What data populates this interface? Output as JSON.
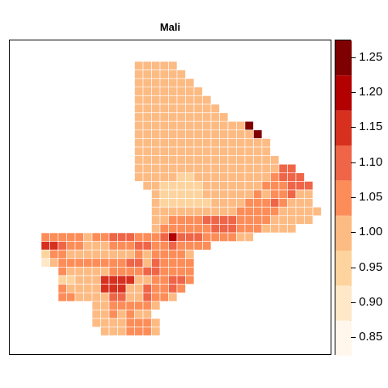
{
  "title": "Mali",
  "legend": {
    "min": 0.825,
    "max": 1.275,
    "ticks": [
      "0.85",
      "0.90",
      "0.95",
      "1.00",
      "1.05",
      "1.10",
      "1.15",
      "1.20",
      "1.25"
    ],
    "bins": [
      0.825,
      0.875,
      0.925,
      0.975,
      1.025,
      1.075,
      1.125,
      1.175,
      1.225,
      1.275
    ],
    "colors": [
      "#FFF7EC",
      "#FEE8C8",
      "#FDD49E",
      "#FDBB84",
      "#FC8D59",
      "#EF6548",
      "#D7301F",
      "#B30000",
      "#7F0000"
    ]
  },
  "grid": {
    "cols": 37,
    "rows": 34,
    "legend_levels": "0=0.85 1=0.90 2=0.95 3=1.00 4=1.05 5=1.10 6=1.15 7=1.20 8=1.25, .=no data",
    "cells": [
      ".............33333..................",
      ".............333333.................",
      ".............3333333................",
      ".............33333333...............",
      ".............333333333..............",
      ".............3333333333.............",
      ".............33333333333............",
      ".............33333333333338.........",
      ".............333333333333338........",
      ".............3333333333333333.......",
      ".............3333333333333333.......",
      ".............33333333333333333......",
      ".............3333333333333333355....",
      ".............33333223333333334555...",
      "..............33222223333333444555..",
      "...............3222223333334344533..",
      "...............3222222333344454333..",
      "...............33333333334444433333.",
      "...............3344445555444433333..",
      "...............34444445554443333....",
      "..4444434455544457555444433.........",
      "..66544333444554454444..............",
      "..244333333334344443................",
      "..134444444455354444................",
      "....4333334444554444................",
      "....2233366663344554................",
      "....433336663354454.................",
      "....44333355335443..................",
      "........33444443....................",
      "........3343433.....................",
      "........33334443....................",
      ".........3334443....................",
      "....................................",
      "...................................."
    ]
  }
}
